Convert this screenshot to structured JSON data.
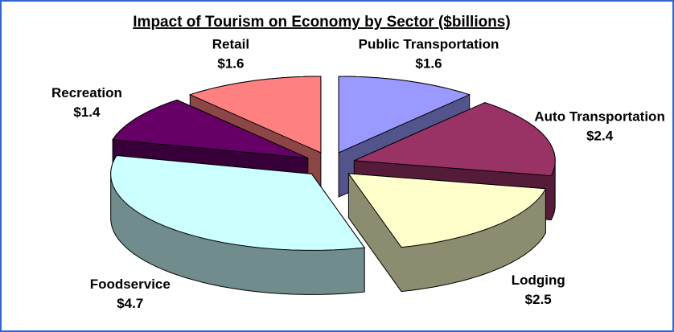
{
  "chart_data": {
    "type": "pie",
    "title": "Impact of Tourism on Economy by Sector ($billions)",
    "categories": [
      "Public Transportation",
      "Auto Transportation",
      "Lodging",
      "Foodservice",
      "Recreation",
      "Retail"
    ],
    "values": [
      1.6,
      2.4,
      2.5,
      4.7,
      1.4,
      1.6
    ],
    "value_labels": [
      "$1.6",
      "$2.4",
      "$2.5",
      "$4.7",
      "$1.4",
      "$1.6"
    ],
    "colors": [
      "#9999ff",
      "#993366",
      "#ffffcc",
      "#ccffff",
      "#660066",
      "#ff8080"
    ]
  }
}
